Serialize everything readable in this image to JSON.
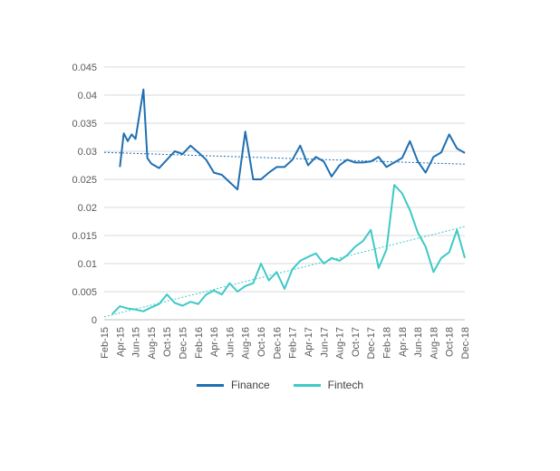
{
  "chart_data": {
    "type": "line",
    "x_tick_labels": [
      "Feb-15",
      "Apr-15",
      "Jun-15",
      "Aug-15",
      "Oct-15",
      "Dec-15",
      "Feb-16",
      "Apr-16",
      "Jun-16",
      "Aug-16",
      "Oct-16",
      "Dec-16",
      "Feb-17",
      "Apr-17",
      "Jun-17",
      "Aug-17",
      "Oct-17",
      "Dec-17",
      "Feb-18",
      "Apr-18",
      "Jun-18",
      "Aug-18",
      "Oct-18",
      "Dec-18"
    ],
    "y_tick_labels": [
      "0",
      "0.005",
      "0.01",
      "0.015",
      "0.02",
      "0.025",
      "0.03",
      "0.035",
      "0.04",
      "0.045"
    ],
    "ylim": [
      0,
      0.045
    ],
    "x_range": [
      "2015-02",
      "2018-12"
    ],
    "grid": "horizontal",
    "legend_position": "bottom",
    "series": [
      {
        "name": "Finance",
        "color": "#1f6fb2",
        "x": [
          "2015-04",
          "2015-04",
          "2015-05",
          "2015-05",
          "2015-06",
          "2015-07",
          "2015-07",
          "2015-08",
          "2015-09",
          "2015-10",
          "2015-11",
          "2015-12",
          "2016-01",
          "2016-02",
          "2016-03",
          "2016-04",
          "2016-05",
          "2016-06",
          "2016-07",
          "2016-08",
          "2016-09",
          "2016-10",
          "2016-11",
          "2016-12",
          "2017-01",
          "2017-02",
          "2017-03",
          "2017-04",
          "2017-05",
          "2017-06",
          "2017-07",
          "2017-08",
          "2017-09",
          "2017-10",
          "2017-11",
          "2017-12",
          "2018-01",
          "2018-02",
          "2018-03",
          "2018-04",
          "2018-05",
          "2018-06",
          "2018-07",
          "2018-08",
          "2018-09",
          "2018-10",
          "2018-11",
          "2018-12"
        ],
        "values": [
          0.0272,
          0.0332,
          0.0318,
          0.033,
          0.0322,
          0.041,
          0.0288,
          0.0278,
          0.027,
          0.0285,
          0.03,
          0.0295,
          0.031,
          0.0298,
          0.0285,
          0.0262,
          0.0258,
          0.0245,
          0.0232,
          0.0335,
          0.025,
          0.025,
          0.0262,
          0.0272,
          0.0272,
          0.0285,
          0.031,
          0.0275,
          0.029,
          0.0282,
          0.0255,
          0.0275,
          0.0285,
          0.028,
          0.028,
          0.0282,
          0.029,
          0.0272,
          0.028,
          0.0288,
          0.0318,
          0.0282,
          0.0262,
          0.029,
          0.0298,
          0.033,
          0.0305,
          0.0297
        ]
      },
      {
        "name": "Fintech",
        "color": "#3ec9c7",
        "x": [
          "2015-03",
          "2015-04",
          "2015-05",
          "2015-06",
          "2015-07",
          "2015-08",
          "2015-09",
          "2015-10",
          "2015-11",
          "2015-12",
          "2016-01",
          "2016-02",
          "2016-03",
          "2016-04",
          "2016-05",
          "2016-06",
          "2016-07",
          "2016-08",
          "2016-09",
          "2016-10",
          "2016-11",
          "2016-12",
          "2017-01",
          "2017-02",
          "2017-03",
          "2017-04",
          "2017-05",
          "2017-06",
          "2017-07",
          "2017-08",
          "2017-09",
          "2017-10",
          "2017-11",
          "2017-12",
          "2018-01",
          "2018-02",
          "2018-03",
          "2018-04",
          "2018-05",
          "2018-06",
          "2018-07",
          "2018-08",
          "2018-09",
          "2018-10",
          "2018-11",
          "2018-12"
        ],
        "values": [
          0.001,
          0.0024,
          0.002,
          0.0018,
          0.0015,
          0.0022,
          0.0028,
          0.0045,
          0.003,
          0.0025,
          0.0032,
          0.0028,
          0.0045,
          0.0052,
          0.0045,
          0.0065,
          0.005,
          0.006,
          0.0065,
          0.01,
          0.007,
          0.0085,
          0.0055,
          0.009,
          0.0105,
          0.0112,
          0.0118,
          0.01,
          0.011,
          0.0105,
          0.0115,
          0.013,
          0.014,
          0.016,
          0.0092,
          0.0125,
          0.024,
          0.0225,
          0.0195,
          0.0155,
          0.013,
          0.0085,
          0.011,
          0.012,
          0.016,
          0.011
        ]
      }
    ],
    "trendlines": [
      {
        "series": "Finance",
        "style": "dotted",
        "start": [
          "2015-02",
          0.0298
        ],
        "end": [
          "2018-12",
          0.0277
        ]
      },
      {
        "series": "Fintech",
        "style": "dotted",
        "start": [
          "2015-02",
          0.0005
        ],
        "end": [
          "2018-12",
          0.0166
        ]
      }
    ]
  }
}
